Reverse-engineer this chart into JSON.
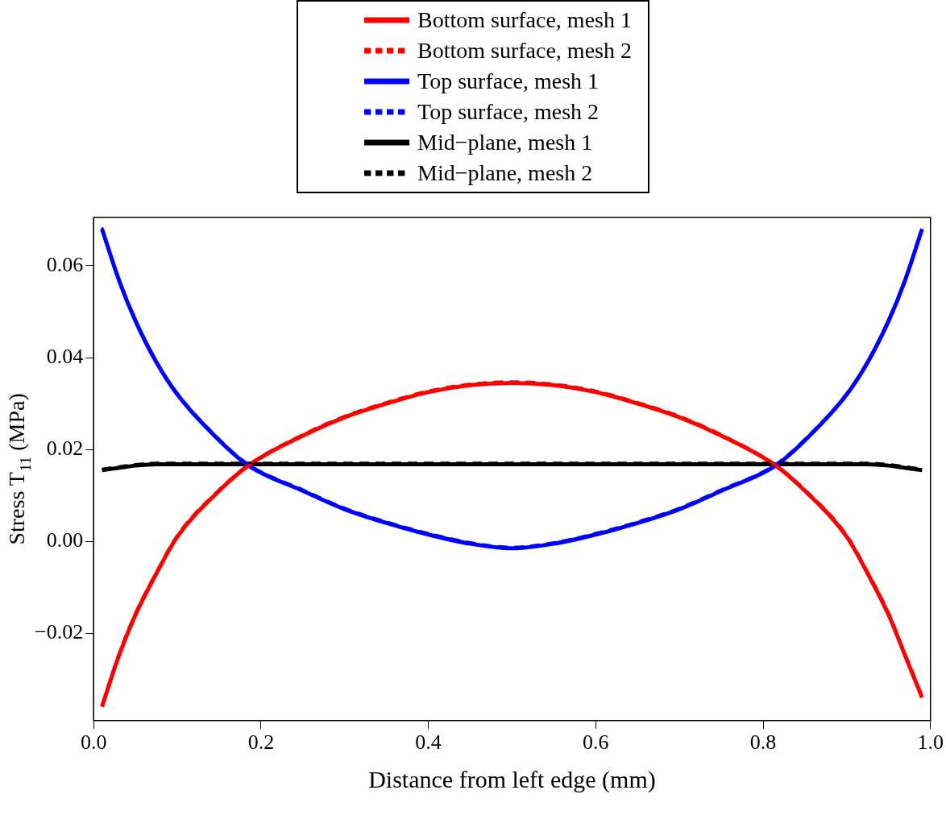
{
  "chart_data": {
    "type": "line",
    "xlabel": "Distance from left edge (mm)",
    "ylabel": "Stress T$_{11}$ (MPa)",
    "xlim": [
      0,
      1
    ],
    "xticks": [
      {
        "value": 0,
        "label": "0.0"
      },
      0.2,
      0.4,
      0.6,
      0.8,
      {
        "value": 1,
        "label": "1.0"
      }
    ],
    "ylim": [
      -0.039,
      0.0705
    ],
    "yticks": [
      {
        "value": -0.02,
        "label": "−0.02"
      },
      {
        "value": 0,
        "label": "0.00"
      },
      0.02,
      0.04,
      0.06
    ],
    "legend": "top",
    "grid": false,
    "marker": "none",
    "x": [
      0.01,
      0.03,
      0.05,
      0.075,
      0.1,
      0.15,
      0.185,
      0.25,
      0.3,
      0.35,
      0.4,
      0.45,
      0.5,
      0.55,
      0.6,
      0.65,
      0.7,
      0.75,
      0.815,
      0.85,
      0.9,
      0.925,
      0.95,
      0.97,
      0.99
    ],
    "series": [
      {
        "name": "Bottom surface, mesh 1",
        "color": "#ff0000",
        "line_style": "solid",
        "values": [
          -0.036,
          -0.025,
          -0.016,
          -0.007,
          0.001,
          0.011,
          0.0165,
          0.023,
          0.027,
          0.03,
          0.0325,
          0.034,
          0.0345,
          0.034,
          0.0325,
          0.03,
          0.027,
          0.023,
          0.0165,
          0.011,
          0.001,
          -0.007,
          -0.016,
          -0.025,
          -0.034
        ]
      },
      {
        "name": "Bottom surface, mesh 2",
        "color": "#ff0000",
        "line_style": "dashed",
        "values": [
          -0.0355,
          -0.0245,
          -0.0155,
          -0.0066,
          0.0014,
          0.0113,
          0.0167,
          0.0233,
          0.0273,
          0.0303,
          0.0328,
          0.0343,
          0.0348,
          0.0343,
          0.0328,
          0.0303,
          0.0273,
          0.0233,
          0.0167,
          0.0113,
          0.0014,
          -0.0066,
          -0.0155,
          -0.0245,
          -0.0335
        ]
      },
      {
        "name": "Top surface, mesh 1",
        "color": "#0000ff",
        "line_style": "solid",
        "values": [
          0.068,
          0.057,
          0.048,
          0.039,
          0.032,
          0.022,
          0.0165,
          0.011,
          0.007,
          0.004,
          0.0015,
          -0.0005,
          -0.0015,
          -0.0005,
          0.0015,
          0.004,
          0.007,
          0.011,
          0.0165,
          0.022,
          0.032,
          0.039,
          0.048,
          0.057,
          0.068
        ]
      },
      {
        "name": "Top surface, mesh 2",
        "color": "#0000ff",
        "line_style": "dashed",
        "values": [
          0.0683,
          0.0573,
          0.0483,
          0.0393,
          0.0323,
          0.0223,
          0.0168,
          0.0113,
          0.0073,
          0.0043,
          0.0018,
          -0.0002,
          -0.0012,
          -0.0002,
          0.0018,
          0.0043,
          0.0073,
          0.0113,
          0.0168,
          0.0223,
          0.0323,
          0.0393,
          0.0483,
          0.0573,
          0.0683
        ]
      },
      {
        "name": "Mid−plane, mesh 1",
        "color": "#000000",
        "line_style": "solid",
        "values": [
          0.0155,
          0.016,
          0.0165,
          0.0168,
          0.0168,
          0.0168,
          0.0168,
          0.0168,
          0.0168,
          0.0168,
          0.0168,
          0.0168,
          0.0168,
          0.0168,
          0.0168,
          0.0168,
          0.0168,
          0.0168,
          0.0168,
          0.0168,
          0.0168,
          0.0168,
          0.0165,
          0.016,
          0.0155
        ]
      },
      {
        "name": "Mid−plane, mesh 2",
        "color": "#000000",
        "line_style": "dashed",
        "values": [
          0.0158,
          0.0163,
          0.0168,
          0.0171,
          0.0171,
          0.0171,
          0.0171,
          0.0171,
          0.0171,
          0.0171,
          0.0171,
          0.0171,
          0.0171,
          0.0171,
          0.0171,
          0.0171,
          0.0171,
          0.0171,
          0.0171,
          0.0171,
          0.0171,
          0.0171,
          0.0168,
          0.0163,
          0.0158
        ]
      }
    ]
  }
}
